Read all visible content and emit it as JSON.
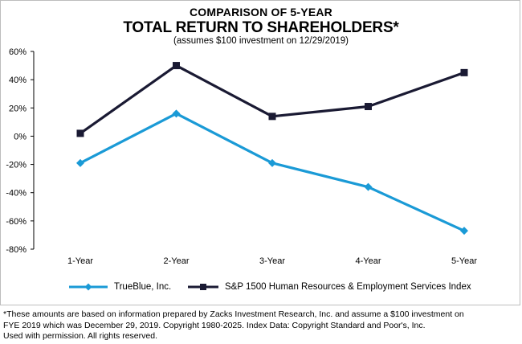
{
  "header": {
    "kicker": "COMPARISON OF 5-YEAR",
    "title": "TOTAL RETURN TO SHAREHOLDERS*",
    "subtitle": "(assumes $100 investment on 12/29/2019)"
  },
  "chart_data": {
    "type": "line",
    "categories": [
      "1-Year",
      "2-Year",
      "3-Year",
      "4-Year",
      "5-Year"
    ],
    "ylim": [
      -80,
      60
    ],
    "yticks": [
      "60%",
      "40%",
      "20%",
      "0%",
      "-20%",
      "-40%",
      "-60%",
      "-80%"
    ],
    "ytick_values": [
      60,
      40,
      20,
      0,
      -20,
      -40,
      -60,
      -80
    ],
    "grid": false,
    "legend_position": "bottom",
    "series": [
      {
        "name": "TrueBlue, Inc.",
        "color": "#1a9ad6",
        "marker": "diamond",
        "values": [
          -19,
          16,
          -19,
          -36,
          -67
        ]
      },
      {
        "name": "S&P 1500 Human Resources & Employment Services Index",
        "color": "#1a1a33",
        "marker": "square",
        "values": [
          2,
          50,
          14,
          21,
          45
        ]
      }
    ]
  },
  "footnote": {
    "line1": "*These amounts are based on information prepared by Zacks Investment Research, Inc. and assume a $100 investment on",
    "line2": "FYE 2019 which was December 29, 2019. Copyright 1980-2025. Index Data: Copyright Standard and Poor's, Inc.",
    "line3": "Used with permission. All rights reserved."
  }
}
